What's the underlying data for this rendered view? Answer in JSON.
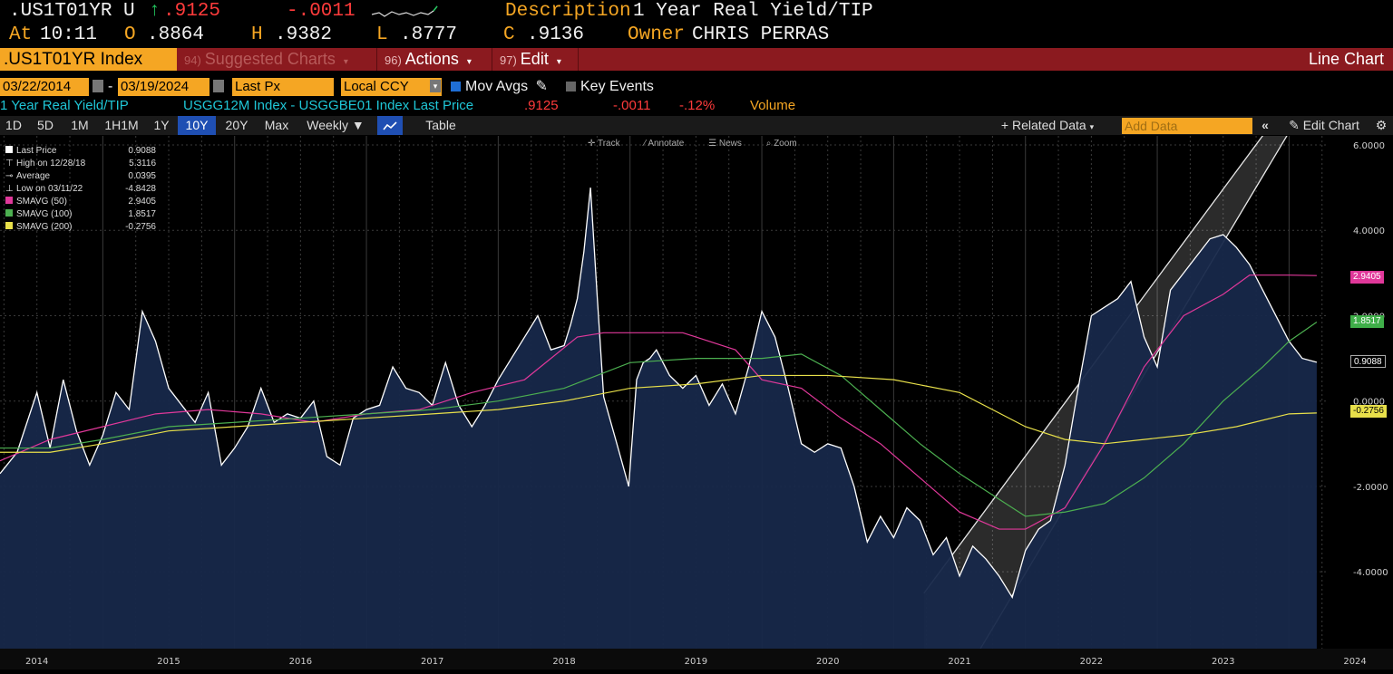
{
  "quote": {
    "ticker": ".US1T01YR U",
    "arrow": "↑",
    "last": ".9125",
    "change": "-.0011",
    "desc_label": "Description",
    "desc_value": "1 Year Real Yield/TIP",
    "at_label": "At",
    "time": "10:11",
    "open_label": "O",
    "open": ".8864",
    "high_label": "H",
    "high": ".9382",
    "low_label": "L",
    "low": ".8777",
    "close_label": "C",
    "close": ".9136",
    "owner_label": "Owner",
    "owner_value": "CHRIS PERRAS"
  },
  "command_bar": {
    "ticker": ".US1T01YR Index",
    "suggested": {
      "num": "94)",
      "label": "Suggested Charts"
    },
    "actions": {
      "num": "96)",
      "label": "Actions"
    },
    "edit": {
      "num": "97)",
      "label": "Edit"
    },
    "view_name": "Line Chart"
  },
  "options": {
    "start_date": "03/22/2014",
    "date_sep": "-",
    "end_date": "03/19/2024",
    "price_field": "Last Px",
    "currency": "Local CCY",
    "mov_avgs": "Mov Avgs",
    "key_events": "Key Events"
  },
  "subtitle": {
    "name": "1 Year Real Yield/TIP",
    "formula": "USGG12M Index - USGGBE01 Index Last Price",
    "last": ".9125",
    "change": "-.0011",
    "pct": "-.12%",
    "volume": "Volume"
  },
  "ranges": [
    "1D",
    "5D",
    "1M",
    "1H1M",
    "1Y",
    "10Y",
    "20Y",
    "Max"
  ],
  "active_range": "10Y",
  "frequency": "Weekly",
  "table_label": "Table",
  "related_data": "+ Related Data",
  "add_data_placeholder": "Add Data",
  "edit_chart": "Edit Chart",
  "chart_tools": [
    "Track",
    "Annotate",
    "News",
    "Zoom"
  ],
  "legend": [
    {
      "label": "Last Price",
      "value": "0.9088",
      "color": "#ffffff"
    },
    {
      "label": "High on 12/28/18",
      "value": "5.3116",
      "color": ""
    },
    {
      "label": "Average",
      "value": "0.0395",
      "color": ""
    },
    {
      "label": "Low on 03/11/22",
      "value": "-4.8428",
      "color": ""
    },
    {
      "label": "SMAVG (50)",
      "value": "2.9405",
      "color": "#e0389a"
    },
    {
      "label": "SMAVG (100)",
      "value": "1.8517",
      "color": "#4caf50"
    },
    {
      "label": "SMAVG (200)",
      "value": "-0.2756",
      "color": "#e8e04a"
    }
  ],
  "axis_tags": {
    "sma50": "2.9405",
    "sma100": "1.8517",
    "last": "0.9088",
    "sma200": "-0.2756"
  },
  "colors": {
    "orange": "#f5a623",
    "red_bar": "#8b1a1f",
    "fill": "#17284a",
    "sma50": "#e0389a",
    "sma100": "#4caf50",
    "sma200": "#e8e04a"
  },
  "chart_data": {
    "type": "area",
    "title": "1 Year Real Yield/TIP",
    "xlabel": "",
    "ylabel": "",
    "x_ticks": [
      "2014",
      "2015",
      "2016",
      "2017",
      "2018",
      "2019",
      "2020",
      "2021",
      "2022",
      "2023",
      "2024"
    ],
    "y_ticks": [
      "6.0000",
      "4.0000",
      "2.0000",
      "0.0000",
      "-2.0000",
      "-4.0000"
    ],
    "ylim": [
      -5.8,
      6.0
    ],
    "xlim": [
      2014.22,
      2024.3
    ],
    "grid": true,
    "legend_position": "top-left",
    "series": [
      {
        "name": "Last Price",
        "x": [
          2014.22,
          2014.35,
          2014.5,
          2014.6,
          2014.7,
          2014.8,
          2014.9,
          2015.0,
          2015.1,
          2015.2,
          2015.3,
          2015.4,
          2015.5,
          2015.6,
          2015.7,
          2015.8,
          2015.9,
          2016.0,
          2016.1,
          2016.2,
          2016.3,
          2016.4,
          2016.5,
          2016.6,
          2016.7,
          2016.8,
          2016.9,
          2017.0,
          2017.1,
          2017.2,
          2017.3,
          2017.4,
          2017.5,
          2017.6,
          2017.7,
          2017.8,
          2017.9,
          2018.0,
          2018.1,
          2018.2,
          2018.3,
          2018.4,
          2018.5,
          2018.55,
          2018.6,
          2018.65,
          2018.7,
          2018.75,
          2018.8,
          2018.9,
          2018.99,
          2019.05,
          2019.1,
          2019.15,
          2019.2,
          2019.3,
          2019.4,
          2019.5,
          2019.6,
          2019.7,
          2019.8,
          2019.9,
          2020.0,
          2020.1,
          2020.2,
          2020.3,
          2020.4,
          2020.5,
          2020.6,
          2020.7,
          2020.8,
          2020.9,
          2021.0,
          2021.1,
          2021.2,
          2021.3,
          2021.4,
          2021.5,
          2021.6,
          2021.7,
          2021.8,
          2021.9,
          2022.0,
          2022.1,
          2022.19,
          2022.3,
          2022.4,
          2022.5,
          2022.6,
          2022.7,
          2022.8,
          2022.9,
          2023.0,
          2023.1,
          2023.2,
          2023.3,
          2023.4,
          2023.5,
          2023.6,
          2023.7,
          2023.8,
          2023.9,
          2024.0,
          2024.1,
          2024.21
        ],
        "y": [
          -1.7,
          -1.2,
          0.2,
          -1.1,
          0.5,
          -0.7,
          -1.5,
          -0.8,
          0.2,
          -0.2,
          2.1,
          1.4,
          0.3,
          -0.1,
          -0.5,
          0.2,
          -1.5,
          -1.1,
          -0.6,
          0.3,
          -0.5,
          -0.3,
          -0.4,
          0.0,
          -1.3,
          -1.5,
          -0.4,
          -0.2,
          -0.1,
          0.8,
          0.3,
          0.2,
          -0.1,
          0.9,
          -0.1,
          -0.6,
          -0.1,
          0.5,
          1.0,
          1.5,
          2.0,
          1.2,
          1.3,
          1.8,
          2.4,
          3.5,
          5.0,
          2.5,
          0.1,
          -1.0,
          -2.0,
          0.5,
          0.9,
          1.0,
          1.2,
          0.6,
          0.3,
          0.6,
          -0.1,
          0.4,
          -0.3,
          0.8,
          2.1,
          1.5,
          0.3,
          -1.0,
          -1.2,
          -1.0,
          -1.1,
          -2.0,
          -3.3,
          -2.7,
          -3.2,
          -2.5,
          -2.8,
          -3.6,
          -3.2,
          -4.1,
          -3.4,
          -3.7,
          -4.1,
          -4.6,
          -3.5,
          -3.0,
          -2.8,
          -1.5,
          0.3,
          2.0,
          2.2,
          2.4,
          2.8,
          1.5,
          0.8,
          2.6,
          3.0,
          3.4,
          3.8,
          3.9,
          3.6,
          3.2,
          2.6,
          2.0,
          1.4,
          1.0,
          0.91
        ]
      },
      {
        "name": "SMAVG (50)",
        "x": [
          2014.22,
          2014.6,
          2015.0,
          2015.4,
          2015.8,
          2016.2,
          2016.6,
          2017.0,
          2017.4,
          2017.8,
          2018.2,
          2018.6,
          2018.8,
          2019.0,
          2019.4,
          2019.8,
          2020.0,
          2020.3,
          2020.6,
          2020.9,
          2021.2,
          2021.5,
          2021.8,
          2022.0,
          2022.3,
          2022.6,
          2022.9,
          2023.2,
          2023.5,
          2023.7,
          2024.0,
          2024.21
        ],
        "y": [
          -1.4,
          -0.9,
          -0.6,
          -0.3,
          -0.2,
          -0.3,
          -0.5,
          -0.3,
          -0.2,
          0.2,
          0.5,
          1.5,
          1.6,
          1.6,
          1.6,
          1.2,
          0.5,
          0.3,
          -0.4,
          -1.0,
          -1.8,
          -2.6,
          -3.0,
          -3.0,
          -2.5,
          -1.0,
          0.8,
          2.0,
          2.5,
          2.95,
          2.95,
          2.94
        ]
      },
      {
        "name": "SMAVG (100)",
        "x": [
          2014.22,
          2014.6,
          2015.0,
          2015.5,
          2016.0,
          2016.5,
          2017.0,
          2017.5,
          2018.0,
          2018.5,
          2019.0,
          2019.5,
          2020.0,
          2020.3,
          2020.6,
          2020.9,
          2021.2,
          2021.5,
          2021.8,
          2022.0,
          2022.3,
          2022.6,
          2022.9,
          2023.2,
          2023.5,
          2023.8,
          2024.0,
          2024.21
        ],
        "y": [
          -1.1,
          -1.1,
          -0.9,
          -0.6,
          -0.5,
          -0.4,
          -0.3,
          -0.2,
          0.0,
          0.3,
          0.9,
          1.0,
          1.0,
          1.1,
          0.6,
          -0.2,
          -1.0,
          -1.7,
          -2.3,
          -2.7,
          -2.6,
          -2.4,
          -1.8,
          -1.0,
          0.0,
          0.8,
          1.4,
          1.85
        ]
      },
      {
        "name": "SMAVG (200)",
        "x": [
          2014.22,
          2014.6,
          2015.0,
          2015.5,
          2016.0,
          2016.5,
          2017.0,
          2017.5,
          2018.0,
          2018.5,
          2019.0,
          2019.5,
          2020.0,
          2020.5,
          2021.0,
          2021.5,
          2022.0,
          2022.3,
          2022.6,
          2022.9,
          2023.2,
          2023.6,
          2024.0,
          2024.21
        ],
        "y": [
          -1.2,
          -1.2,
          -1.0,
          -0.7,
          -0.6,
          -0.5,
          -0.4,
          -0.3,
          -0.2,
          0.0,
          0.3,
          0.4,
          0.6,
          0.6,
          0.5,
          0.2,
          -0.6,
          -0.9,
          -1.0,
          -0.9,
          -0.8,
          -0.6,
          -0.3,
          -0.28
        ]
      }
    ]
  }
}
